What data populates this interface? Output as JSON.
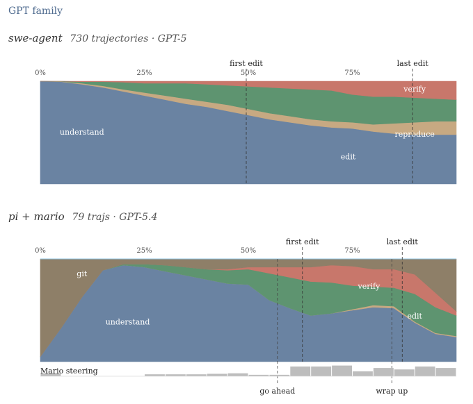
{
  "family_title": "GPT family",
  "colors": {
    "understand": "#6a83a2",
    "reproduce": "#c7a982",
    "edit": "#5e9470",
    "verify": "#c8776b",
    "git": "#8e7f68",
    "steering": "#bdbdbd"
  },
  "chart_data": [
    {
      "type": "area",
      "title": "swe-agent",
      "subtitle": "730 trajectories · GPT-5",
      "x_ticks": [
        "0%",
        "25%",
        "50%",
        "75%"
      ],
      "xlim": [
        0,
        100
      ],
      "ylim": [
        0,
        1
      ],
      "x": [
        0,
        5,
        10,
        15,
        20,
        25,
        30,
        35,
        40,
        45,
        50,
        55,
        60,
        65,
        70,
        75,
        80,
        85,
        90,
        95,
        100
      ],
      "series": [
        {
          "name": "understand",
          "values": [
            1.0,
            0.995,
            0.97,
            0.94,
            0.9,
            0.86,
            0.82,
            0.78,
            0.75,
            0.71,
            0.67,
            0.63,
            0.6,
            0.57,
            0.55,
            0.54,
            0.51,
            0.49,
            0.48,
            0.48,
            0.48
          ]
        },
        {
          "name": "reproduce",
          "values": [
            0.0,
            0.003,
            0.01,
            0.015,
            0.02,
            0.03,
            0.04,
            0.05,
            0.05,
            0.06,
            0.06,
            0.06,
            0.06,
            0.06,
            0.06,
            0.06,
            0.07,
            0.1,
            0.12,
            0.13,
            0.13
          ]
        },
        {
          "name": "edit",
          "values": [
            0.0,
            0.002,
            0.015,
            0.04,
            0.07,
            0.09,
            0.12,
            0.15,
            0.17,
            0.19,
            0.22,
            0.25,
            0.27,
            0.29,
            0.3,
            0.27,
            0.27,
            0.26,
            0.24,
            0.22,
            0.21
          ]
        },
        {
          "name": "verify",
          "values": [
            0.0,
            0.0,
            0.005,
            0.005,
            0.01,
            0.02,
            0.02,
            0.02,
            0.03,
            0.04,
            0.05,
            0.06,
            0.07,
            0.08,
            0.09,
            0.13,
            0.15,
            0.15,
            0.16,
            0.17,
            0.18
          ]
        }
      ],
      "series_label_pos": {
        "understand": [
          10,
          0.48
        ],
        "edit": [
          74,
          0.24
        ],
        "reproduce": [
          90,
          0.46
        ],
        "verify": [
          90,
          0.9
        ]
      },
      "annotations": [
        {
          "label": "first edit",
          "x": 49.5
        },
        {
          "label": "last edit",
          "x": 89.5
        }
      ]
    },
    {
      "type": "area",
      "title": "pi + mario",
      "subtitle": "79 trajs · GPT-5.4",
      "x_ticks": [
        "0%",
        "25%",
        "50%",
        "75%"
      ],
      "xlim": [
        0,
        100
      ],
      "ylim": [
        0,
        1
      ],
      "x": [
        0,
        5,
        10,
        15,
        20,
        25,
        30,
        35,
        40,
        45,
        50,
        55,
        60,
        65,
        70,
        75,
        80,
        85,
        90,
        95,
        100
      ],
      "series": [
        {
          "name": "understand",
          "values": [
            0.05,
            0.33,
            0.63,
            0.89,
            0.94,
            0.92,
            0.88,
            0.84,
            0.8,
            0.76,
            0.75,
            0.6,
            0.52,
            0.45,
            0.47,
            0.5,
            0.53,
            0.52,
            0.38,
            0.27,
            0.24
          ]
        },
        {
          "name": "reproduce",
          "values": [
            0.0,
            0.0,
            0.0,
            0.0,
            0.0,
            0.0,
            0.0,
            0.0,
            0.0,
            0.0,
            0.0,
            0.0,
            0.0,
            0.0,
            0.0,
            0.01,
            0.02,
            0.02,
            0.01,
            0.01,
            0.01
          ]
        },
        {
          "name": "edit",
          "values": [
            0.0,
            0.0,
            0.0,
            0.0,
            0.01,
            0.03,
            0.06,
            0.08,
            0.1,
            0.13,
            0.15,
            0.26,
            0.3,
            0.33,
            0.3,
            0.23,
            0.18,
            0.18,
            0.27,
            0.25,
            0.2
          ]
        },
        {
          "name": "verify",
          "values": [
            0.0,
            0.0,
            0.0,
            0.0,
            0.0,
            0.0,
            0.0,
            0.0,
            0.0,
            0.01,
            0.02,
            0.06,
            0.1,
            0.14,
            0.17,
            0.19,
            0.17,
            0.18,
            0.19,
            0.14,
            0.04
          ]
        },
        {
          "name": "git",
          "values": [
            0.95,
            0.67,
            0.37,
            0.11,
            0.05,
            0.05,
            0.06,
            0.08,
            0.1,
            0.1,
            0.08,
            0.08,
            0.08,
            0.08,
            0.06,
            0.07,
            0.1,
            0.1,
            0.15,
            0.33,
            0.51
          ]
        }
      ],
      "series_label_pos": {
        "understand": [
          21,
          0.36
        ],
        "git": [
          10,
          0.83
        ],
        "verify": [
          79,
          0.71
        ],
        "edit": [
          90,
          0.42
        ]
      },
      "annotations": [
        {
          "label": "first edit",
          "x": 63
        },
        {
          "label": "last edit",
          "x": 87
        },
        {
          "label": "go ahead",
          "x": 57,
          "position": "bottom"
        },
        {
          "label": "wrap up",
          "x": 84.5,
          "position": "bottom"
        }
      ],
      "steering": {
        "label": "Mario steering",
        "x": [
          0,
          5,
          10,
          15,
          20,
          25,
          30,
          35,
          40,
          45,
          50,
          55,
          60,
          65,
          70,
          75,
          80,
          85,
          90,
          95
        ],
        "values": [
          0.3,
          0,
          0,
          0,
          0,
          0.2,
          0.2,
          0.2,
          0.25,
          0.3,
          0.15,
          0.15,
          1.0,
          1.0,
          1.1,
          0.5,
          0.85,
          0.7,
          1.0,
          0.85
        ]
      }
    }
  ]
}
